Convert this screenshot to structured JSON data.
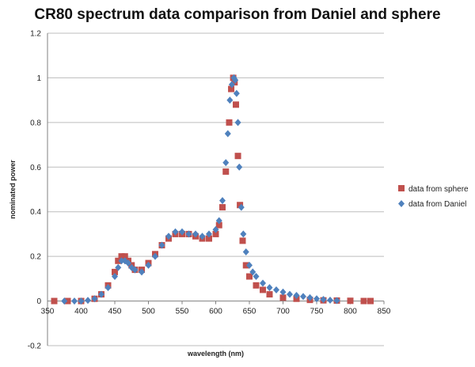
{
  "chart_data": {
    "type": "scatter",
    "title": "CR80 spectrum data comparison from Daniel and sphere",
    "xlabel": "wavelength (nm)",
    "ylabel": "nominated power",
    "xlim": [
      350,
      850
    ],
    "ylim": [
      -0.2,
      1.2
    ],
    "x_ticks": [
      350,
      400,
      450,
      500,
      550,
      600,
      650,
      700,
      750,
      800,
      850
    ],
    "y_ticks": [
      -0.2,
      0,
      0.2,
      0.4,
      0.6,
      0.8,
      1,
      1.2
    ],
    "y_tick_labels": [
      "-0.2",
      "0",
      "0.2",
      "0.4",
      "0.6",
      "0.8",
      "1",
      "1.2"
    ],
    "grid": "horizontal",
    "legend_position": "right",
    "colors": {
      "sphere": "#c0504d",
      "daniel": "#4f81bd"
    },
    "series": [
      {
        "name": "data from sphere",
        "marker": "square",
        "x": [
          360,
          380,
          400,
          420,
          430,
          440,
          450,
          455,
          460,
          465,
          470,
          475,
          480,
          490,
          500,
          510,
          520,
          530,
          540,
          550,
          560,
          570,
          580,
          590,
          600,
          605,
          610,
          615,
          620,
          623,
          626,
          628,
          630,
          633,
          636,
          640,
          645,
          650,
          660,
          670,
          680,
          700,
          720,
          740,
          760,
          780,
          800,
          820,
          830
        ],
        "y": [
          0.0,
          0.0,
          0.0,
          0.01,
          0.03,
          0.07,
          0.13,
          0.18,
          0.2,
          0.2,
          0.18,
          0.16,
          0.14,
          0.14,
          0.17,
          0.21,
          0.25,
          0.28,
          0.3,
          0.3,
          0.3,
          0.29,
          0.28,
          0.28,
          0.3,
          0.34,
          0.42,
          0.58,
          0.8,
          0.95,
          1.0,
          0.98,
          0.88,
          0.65,
          0.43,
          0.27,
          0.16,
          0.11,
          0.07,
          0.05,
          0.03,
          0.015,
          0.01,
          0.005,
          0.003,
          0.002,
          0.001,
          0.0,
          0.0
        ]
      },
      {
        "name": "data from Daniel",
        "marker": "diamond",
        "x": [
          375,
          390,
          400,
          410,
          420,
          430,
          440,
          450,
          455,
          460,
          465,
          470,
          475,
          480,
          490,
          500,
          510,
          520,
          530,
          540,
          550,
          560,
          570,
          580,
          590,
          600,
          605,
          610,
          615,
          618,
          621,
          624,
          627,
          629,
          631,
          633,
          635,
          638,
          641,
          645,
          650,
          655,
          660,
          670,
          680,
          690,
          700,
          710,
          720,
          730,
          740,
          750,
          760,
          770,
          780
        ],
        "y": [
          0.0,
          0.0,
          0.0,
          0.003,
          0.01,
          0.03,
          0.06,
          0.11,
          0.15,
          0.18,
          0.18,
          0.17,
          0.15,
          0.14,
          0.13,
          0.16,
          0.2,
          0.25,
          0.29,
          0.31,
          0.31,
          0.3,
          0.3,
          0.29,
          0.3,
          0.32,
          0.36,
          0.45,
          0.62,
          0.75,
          0.9,
          0.97,
          1.0,
          0.99,
          0.93,
          0.8,
          0.6,
          0.42,
          0.3,
          0.22,
          0.16,
          0.13,
          0.11,
          0.08,
          0.06,
          0.05,
          0.04,
          0.03,
          0.025,
          0.02,
          0.015,
          0.01,
          0.007,
          0.004,
          0.002
        ]
      }
    ]
  }
}
